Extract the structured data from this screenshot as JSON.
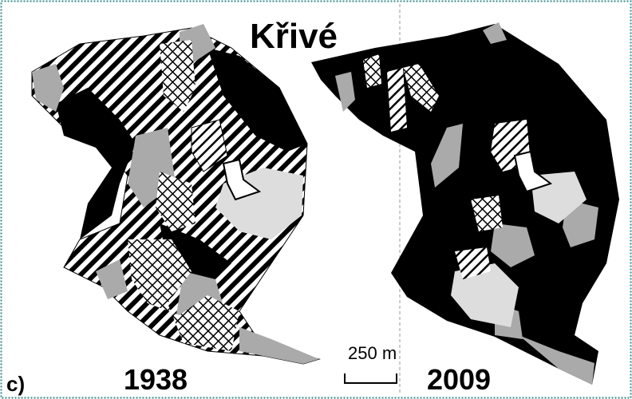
{
  "title": "Křivé",
  "panel_label": "c)",
  "maps": [
    {
      "year": "1938"
    },
    {
      "year": "2009"
    }
  ],
  "scale_bar": "250 m"
}
